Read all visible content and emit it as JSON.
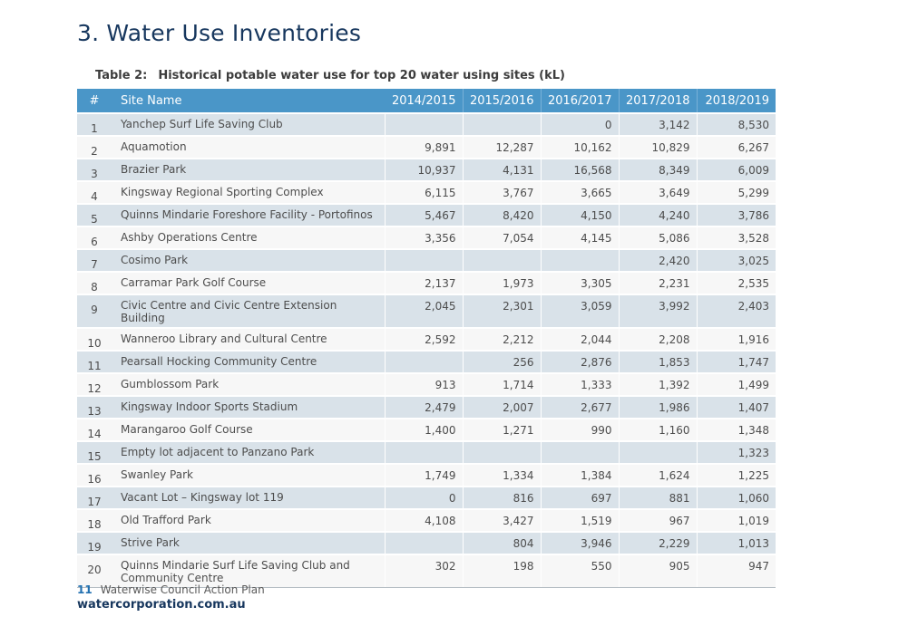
{
  "page": {
    "title": "3. Water Use Inventories",
    "caption_label": "Table 2:",
    "caption_text": "Historical potable water use for top 20 water using sites (kL)"
  },
  "table": {
    "columns": [
      "#",
      "Site Name",
      "2014/2015",
      "2015/2016",
      "2016/2017",
      "2017/2018",
      "2018/2019"
    ],
    "rows": [
      {
        "rank": "1",
        "site": "Yanchep Surf Life Saving Club",
        "values": [
          "",
          "",
          "0",
          "3,142",
          "8,530"
        ]
      },
      {
        "rank": "2",
        "site": "Aquamotion",
        "values": [
          "9,891",
          "12,287",
          "10,162",
          "10,829",
          "6,267"
        ]
      },
      {
        "rank": "3",
        "site": "Brazier Park",
        "values": [
          "10,937",
          "4,131",
          "16,568",
          "8,349",
          "6,009"
        ]
      },
      {
        "rank": "4",
        "site": "Kingsway Regional Sporting Complex",
        "values": [
          "6,115",
          "3,767",
          "3,665",
          "3,649",
          "5,299"
        ]
      },
      {
        "rank": "5",
        "site": "Quinns Mindarie Foreshore Facility - Portofinos",
        "values": [
          "5,467",
          "8,420",
          "4,150",
          "4,240",
          "3,786"
        ]
      },
      {
        "rank": "6",
        "site": "Ashby Operations Centre",
        "values": [
          "3,356",
          "7,054",
          "4,145",
          "5,086",
          "3,528"
        ]
      },
      {
        "rank": "7",
        "site": "Cosimo Park",
        "values": [
          "",
          "",
          "",
          "2,420",
          "3,025"
        ]
      },
      {
        "rank": "8",
        "site": "Carramar Park Golf Course",
        "values": [
          "2,137",
          "1,973",
          "3,305",
          "2,231",
          "2,535"
        ]
      },
      {
        "rank": "9",
        "site": "Civic Centre and Civic Centre Extension Building",
        "values": [
          "2,045",
          "2,301",
          "3,059",
          "3,992",
          "2,403"
        ]
      },
      {
        "rank": "10",
        "site": "Wanneroo Library and Cultural Centre",
        "values": [
          "2,592",
          "2,212",
          "2,044",
          "2,208",
          "1,916"
        ]
      },
      {
        "rank": "11",
        "site": "Pearsall Hocking Community Centre",
        "values": [
          "",
          "256",
          "2,876",
          "1,853",
          "1,747"
        ]
      },
      {
        "rank": "12",
        "site": "Gumblossom Park",
        "values": [
          "913",
          "1,714",
          "1,333",
          "1,392",
          "1,499"
        ]
      },
      {
        "rank": "13",
        "site": "Kingsway Indoor Sports Stadium",
        "values": [
          "2,479",
          "2,007",
          "2,677",
          "1,986",
          "1,407"
        ]
      },
      {
        "rank": "14",
        "site": "Marangaroo Golf Course",
        "values": [
          "1,400",
          "1,271",
          "990",
          "1,160",
          "1,348"
        ]
      },
      {
        "rank": "15",
        "site": "Empty lot adjacent to Panzano Park",
        "values": [
          "",
          "",
          "",
          "",
          "1,323"
        ]
      },
      {
        "rank": "16",
        "site": "Swanley Park",
        "values": [
          "1,749",
          "1,334",
          "1,384",
          "1,624",
          "1,225"
        ]
      },
      {
        "rank": "17",
        "site": "Vacant Lot – Kingsway lot 119",
        "values": [
          "0",
          "816",
          "697",
          "881",
          "1,060"
        ]
      },
      {
        "rank": "18",
        "site": "Old Trafford Park",
        "values": [
          "4,108",
          "3,427",
          "1,519",
          "967",
          "1,019"
        ]
      },
      {
        "rank": "19",
        "site": "Strive Park",
        "values": [
          "",
          "804",
          "3,946",
          "2,229",
          "1,013"
        ]
      },
      {
        "rank": "20",
        "site": "Quinns Mindarie Surf Life Saving Club and Community Centre",
        "values": [
          "302",
          "198",
          "550",
          "905",
          "947"
        ]
      }
    ]
  },
  "footer": {
    "page_number": "11",
    "doc_title": "Waterwise Council Action Plan",
    "website": "watercorporation.com.au"
  },
  "colors": {
    "title-blue": "#17375e",
    "header-bg": "#4a96c8",
    "header-text": "#ffffff",
    "row-alt-bg": "#d9e2e9",
    "row-bg": "#f7f7f7",
    "body-text": "#4d4d4d",
    "caption-text": "#3d3d3d",
    "page-number-blue": "#2170b0",
    "footer-text": "#595959",
    "link-navy": "#17375e",
    "table-bottom-border": "#b4bcc2"
  }
}
